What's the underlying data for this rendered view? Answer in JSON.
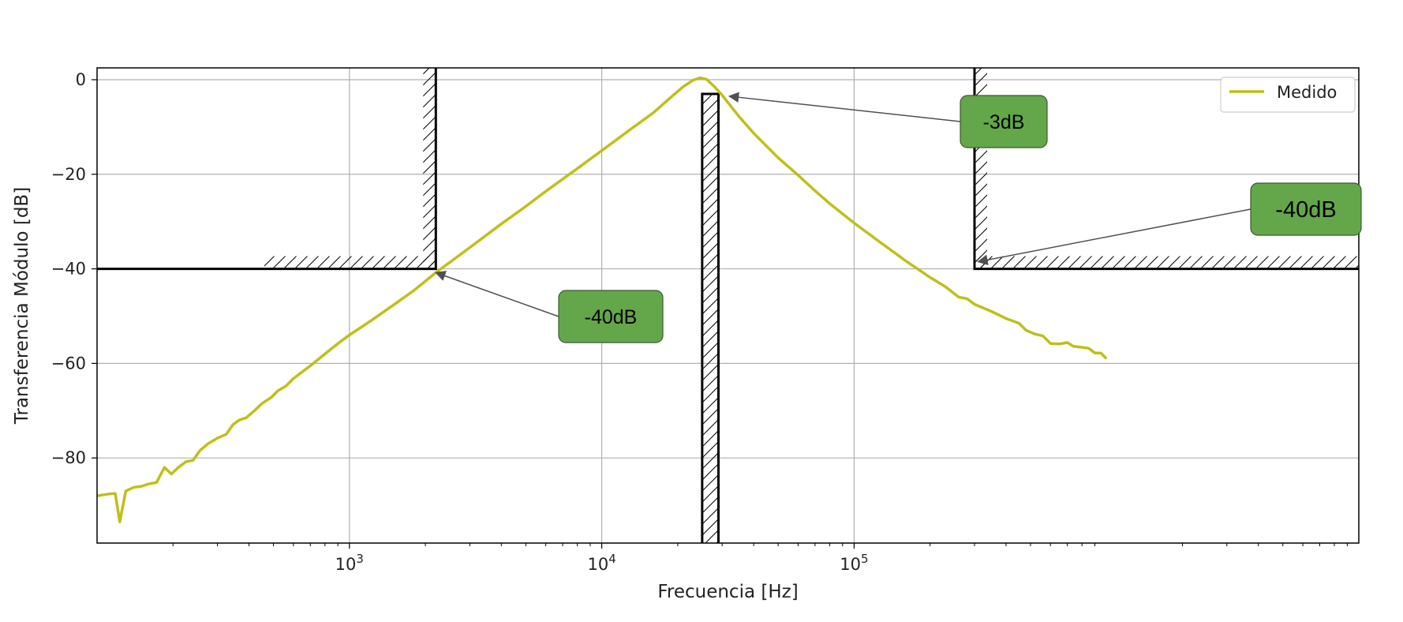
{
  "chart_data": {
    "type": "line",
    "title": "",
    "xlabel": "Frecuencia [Hz]",
    "ylabel": "Transferencia Módulo [dB]",
    "xscale": "log",
    "xlim": [
      100,
      10000000
    ],
    "ylim": [
      -98,
      2.5
    ],
    "grid": true,
    "legend_placement": "top-right",
    "colors": {
      "series": "#bfbf1a",
      "annotation_box": "#64a64a",
      "frame": "#000000",
      "grid": "#b0b0b0"
    },
    "x_ticks": [
      {
        "value": 1000,
        "base": "10",
        "exp": "3"
      },
      {
        "value": 10000,
        "base": "10",
        "exp": "4"
      },
      {
        "value": 100000,
        "base": "10",
        "exp": "5"
      }
    ],
    "y_ticks": [
      {
        "value": 0,
        "label": "0"
      },
      {
        "value": -20,
        "label": "−20"
      },
      {
        "value": -40,
        "label": "−40"
      },
      {
        "value": -60,
        "label": "−60"
      },
      {
        "value": -80,
        "label": "−80"
      }
    ],
    "series": [
      {
        "name": "Medido",
        "points": [
          [
            100,
            -88
          ],
          [
            112,
            -87.6
          ],
          [
            118,
            -87.5
          ],
          [
            123,
            -93.5
          ],
          [
            130,
            -87
          ],
          [
            140,
            -86.2
          ],
          [
            150,
            -86
          ],
          [
            160,
            -85.5
          ],
          [
            172,
            -85.2
          ],
          [
            185,
            -82
          ],
          [
            197,
            -83.4
          ],
          [
            210,
            -82
          ],
          [
            225,
            -80.8
          ],
          [
            240,
            -80.5
          ],
          [
            255,
            -78.5
          ],
          [
            275,
            -77
          ],
          [
            300,
            -75.8
          ],
          [
            325,
            -75
          ],
          [
            345,
            -73
          ],
          [
            365,
            -72
          ],
          [
            390,
            -71.5
          ],
          [
            420,
            -70
          ],
          [
            450,
            -68.5
          ],
          [
            490,
            -67.2
          ],
          [
            520,
            -65.8
          ],
          [
            560,
            -64.8
          ],
          [
            600,
            -63.2
          ],
          [
            650,
            -61.8
          ],
          [
            700,
            -60.5
          ],
          [
            800,
            -58
          ],
          [
            900,
            -55.8
          ],
          [
            1000,
            -54
          ],
          [
            1200,
            -51.2
          ],
          [
            1500,
            -47.6
          ],
          [
            1800,
            -44.6
          ],
          [
            2200,
            -40.8
          ],
          [
            3000,
            -35.5
          ],
          [
            4000,
            -30.5
          ],
          [
            5000,
            -26.8
          ],
          [
            6000,
            -23.6
          ],
          [
            8000,
            -18.8
          ],
          [
            10000,
            -15
          ],
          [
            13000,
            -10.5
          ],
          [
            16000,
            -7
          ],
          [
            19000,
            -3.5
          ],
          [
            21000,
            -1.5
          ],
          [
            23000,
            -0.1
          ],
          [
            24500,
            0.4
          ],
          [
            26000,
            0.1
          ],
          [
            28000,
            -1.5
          ],
          [
            30000,
            -3.3
          ],
          [
            35000,
            -7.8
          ],
          [
            40000,
            -11.3
          ],
          [
            50000,
            -16.5
          ],
          [
            60000,
            -20.2
          ],
          [
            70000,
            -23.5
          ],
          [
            80000,
            -26.2
          ],
          [
            100000,
            -30.3
          ],
          [
            130000,
            -34.8
          ],
          [
            160000,
            -38.3
          ],
          [
            200000,
            -41.8
          ],
          [
            230000,
            -43.8
          ],
          [
            260000,
            -46
          ],
          [
            280000,
            -46.3
          ],
          [
            300000,
            -47.5
          ],
          [
            350000,
            -49
          ],
          [
            400000,
            -50.5
          ],
          [
            450000,
            -51.5
          ],
          [
            480000,
            -53
          ],
          [
            520000,
            -53.8
          ],
          [
            560000,
            -54.2
          ],
          [
            600000,
            -55.8
          ],
          [
            650000,
            -55.9
          ],
          [
            700000,
            -55.6
          ],
          [
            740000,
            -56.4
          ],
          [
            800000,
            -56.6
          ],
          [
            850000,
            -56.8
          ],
          [
            900000,
            -57.8
          ],
          [
            950000,
            -57.8
          ],
          [
            1000000,
            -59
          ]
        ]
      }
    ],
    "mask": {
      "left_corner_freq": 2200,
      "notch_start": 25000,
      "notch_end": 29000,
      "notch_top": -3,
      "right_corner_freq": 300000,
      "stop_level": -40
    },
    "annotations": [
      {
        "text": "-40dB",
        "target": [
          2200,
          -40.8
        ]
      },
      {
        "text": "-3dB",
        "target": [
          32000,
          -3.5
        ]
      },
      {
        "text": "-40dB",
        "target": [
          310000,
          -38.5
        ]
      }
    ]
  }
}
